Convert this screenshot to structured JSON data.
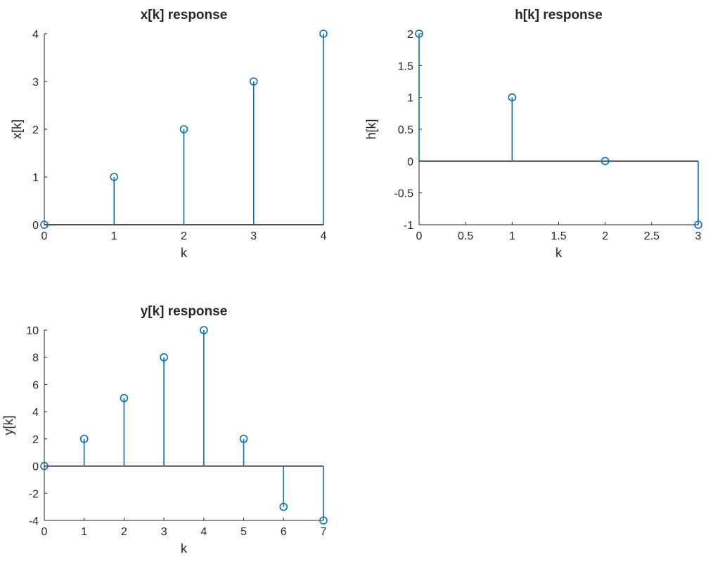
{
  "colors": {
    "stem": "#0072bd",
    "axis": "#262626",
    "baseline": "#000000",
    "background": "#ffffff"
  },
  "chart_data": [
    {
      "id": "x",
      "type": "stem",
      "title": "x[k] response",
      "xlabel": "k",
      "ylabel": "x[k]",
      "xlim": [
        0,
        4
      ],
      "ylim": [
        0,
        4
      ],
      "xticks": [
        0,
        1,
        2,
        3,
        4
      ],
      "xticklabels": [
        "0",
        "1",
        "2",
        "3",
        "4"
      ],
      "yticks": [
        0,
        1,
        2,
        3,
        4
      ],
      "yticklabels": [
        "0",
        "1",
        "2",
        "3",
        "4"
      ],
      "x": [
        0,
        1,
        2,
        3,
        4
      ],
      "y": [
        0,
        1,
        2,
        3,
        4
      ],
      "grid": false
    },
    {
      "id": "h",
      "type": "stem",
      "title": "h[k] response",
      "xlabel": "k",
      "ylabel": "h[k]",
      "xlim": [
        0,
        3
      ],
      "ylim": [
        -1,
        2
      ],
      "xticks": [
        0,
        0.5,
        1,
        1.5,
        2,
        2.5,
        3
      ],
      "xticklabels": [
        "0",
        "0.5",
        "1",
        "1.5",
        "2",
        "2.5",
        "3"
      ],
      "yticks": [
        -1,
        -0.5,
        0,
        0.5,
        1,
        1.5,
        2
      ],
      "yticklabels": [
        "-1",
        "-0.5",
        "0",
        "0.5",
        "1",
        "1.5",
        "2"
      ],
      "x": [
        0,
        1,
        2,
        3
      ],
      "y": [
        2,
        1,
        0,
        -1
      ],
      "grid": false
    },
    {
      "id": "y",
      "type": "stem",
      "title": "y[k] response",
      "xlabel": "k",
      "ylabel": "y[k]",
      "xlim": [
        0,
        7
      ],
      "ylim": [
        -4,
        10
      ],
      "xticks": [
        0,
        1,
        2,
        3,
        4,
        5,
        6,
        7
      ],
      "xticklabels": [
        "0",
        "1",
        "2",
        "3",
        "4",
        "5",
        "6",
        "7"
      ],
      "yticks": [
        -4,
        -2,
        0,
        2,
        4,
        6,
        8,
        10
      ],
      "yticklabels": [
        "-4",
        "-2",
        "0",
        "2",
        "4",
        "6",
        "8",
        "10"
      ],
      "x": [
        0,
        1,
        2,
        3,
        4,
        5,
        6,
        7
      ],
      "y": [
        0,
        2,
        5,
        8,
        10,
        2,
        -3,
        -4
      ],
      "grid": false
    }
  ]
}
